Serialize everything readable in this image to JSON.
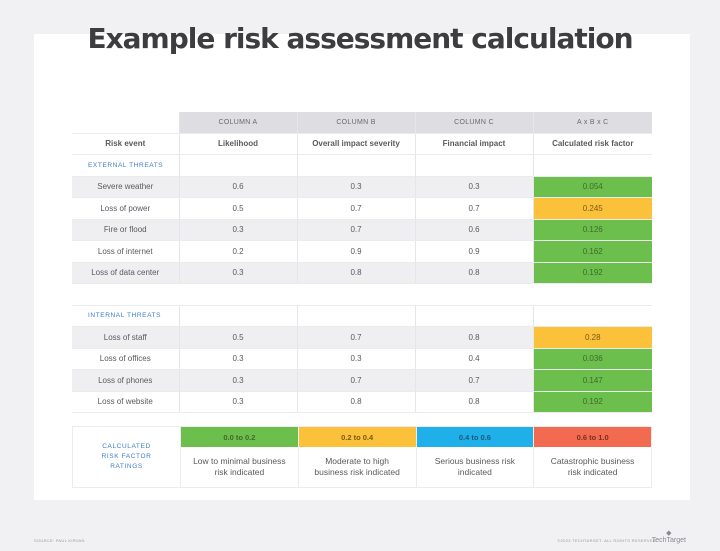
{
  "title": "Example risk assessment calculation",
  "table": {
    "column_groups": [
      "",
      "COLUMN A",
      "COLUMN B",
      "COLUMN C",
      "A x B x C"
    ],
    "headers": [
      "Risk event",
      "Likelihood",
      "Overall impact severity",
      "Financial impact",
      "Calculated risk factor"
    ],
    "sections": [
      {
        "label": "EXTERNAL THREATS",
        "rows": [
          {
            "event": "Severe weather",
            "a": "0.6",
            "b": "0.3",
            "c": "0.3",
            "risk": "0.054",
            "rating": "green"
          },
          {
            "event": "Loss of power",
            "a": "0.5",
            "b": "0.7",
            "c": "0.7",
            "risk": "0.245",
            "rating": "yellow"
          },
          {
            "event": "Fire or flood",
            "a": "0.3",
            "b": "0.7",
            "c": "0.6",
            "risk": "0.126",
            "rating": "green"
          },
          {
            "event": "Loss of internet",
            "a": "0.2",
            "b": "0.9",
            "c": "0.9",
            "risk": "0.162",
            "rating": "green"
          },
          {
            "event": "Loss of data center",
            "a": "0.3",
            "b": "0.8",
            "c": "0.8",
            "risk": "0.192",
            "rating": "green"
          }
        ]
      },
      {
        "label": "INTERNAL THREATS",
        "rows": [
          {
            "event": "Loss of staff",
            "a": "0.5",
            "b": "0.7",
            "c": "0.8",
            "risk": "0.28",
            "rating": "yellow"
          },
          {
            "event": "Loss of offices",
            "a": "0.3",
            "b": "0.3",
            "c": "0.4",
            "risk": "0.036",
            "rating": "green"
          },
          {
            "event": "Loss of phones",
            "a": "0.3",
            "b": "0.7",
            "c": "0.7",
            "risk": "0.147",
            "rating": "green"
          },
          {
            "event": "Loss of website",
            "a": "0.3",
            "b": "0.8",
            "c": "0.8",
            "risk": "0.192",
            "rating": "green"
          }
        ]
      }
    ]
  },
  "legend": {
    "title_lines": [
      "CALCULATED",
      "RISK FACTOR",
      "RATINGS"
    ],
    "items": [
      {
        "range": "0.0 to 0.2",
        "description": "Low to minimal business risk indicated",
        "color": "#6cbf4c",
        "text_color": "#3f6a2c"
      },
      {
        "range": "0.2 to 0.4",
        "description": "Moderate to high business risk indicated",
        "color": "#fbc13b",
        "text_color": "#7a5a14"
      },
      {
        "range": "0.4 to 0.6",
        "description": "Serious business risk indicated",
        "color": "#1fb0ea",
        "text_color": "#1a5a7a"
      },
      {
        "range": "0.6 to 1.0",
        "description": "Catastrophic business risk indicated",
        "color": "#f26a4f",
        "text_color": "#7a2f22"
      }
    ]
  },
  "colors": {
    "green": "#6cbf4c",
    "yellow": "#fbc13b",
    "blue": "#1fb0ea",
    "red": "#f26a4f",
    "section_label": "#3b7ec9"
  },
  "footer": {
    "left": "SOURCE: PAUL KIRVAN",
    "right": "©2023 TECHTARGET. ALL RIGHTS RESERVED",
    "logo": "TechTarget"
  }
}
